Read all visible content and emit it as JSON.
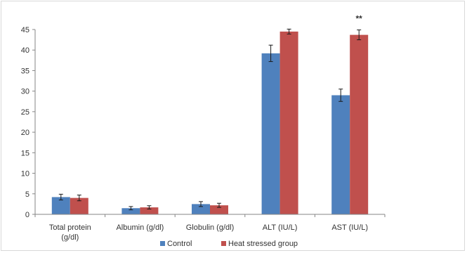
{
  "chart_data": {
    "type": "bar",
    "categories": [
      "Total protein (g/dl)",
      "Albumin (g/dl)",
      "Globulin (g/dl)",
      "ALT (IU/L)",
      "AST (IU/L)"
    ],
    "category_lines": [
      [
        "Total protein",
        "(g/dl)"
      ],
      [
        "Albumin (g/dl)"
      ],
      [
        "Globulin (g/dl)"
      ],
      [
        "ALT (IU/L)"
      ],
      [
        "AST (IU/L)"
      ]
    ],
    "series": [
      {
        "name": "Control",
        "color": "#4f81bd",
        "values": [
          4.2,
          1.5,
          2.5,
          39.2,
          29.0
        ],
        "errors": [
          0.7,
          0.4,
          0.6,
          2.0,
          1.5
        ]
      },
      {
        "name": "Heat stressed group",
        "color": "#c0504d",
        "values": [
          4.0,
          1.7,
          2.2,
          44.5,
          43.7
        ],
        "errors": [
          0.7,
          0.4,
          0.5,
          0.6,
          1.2
        ]
      }
    ],
    "ylim": [
      0,
      45
    ],
    "yticks": [
      0,
      5,
      10,
      15,
      20,
      25,
      30,
      35,
      40,
      45
    ],
    "annotations": [
      {
        "category_index": 4,
        "text": "**"
      }
    ],
    "grid": false,
    "legend_position": "bottom"
  }
}
